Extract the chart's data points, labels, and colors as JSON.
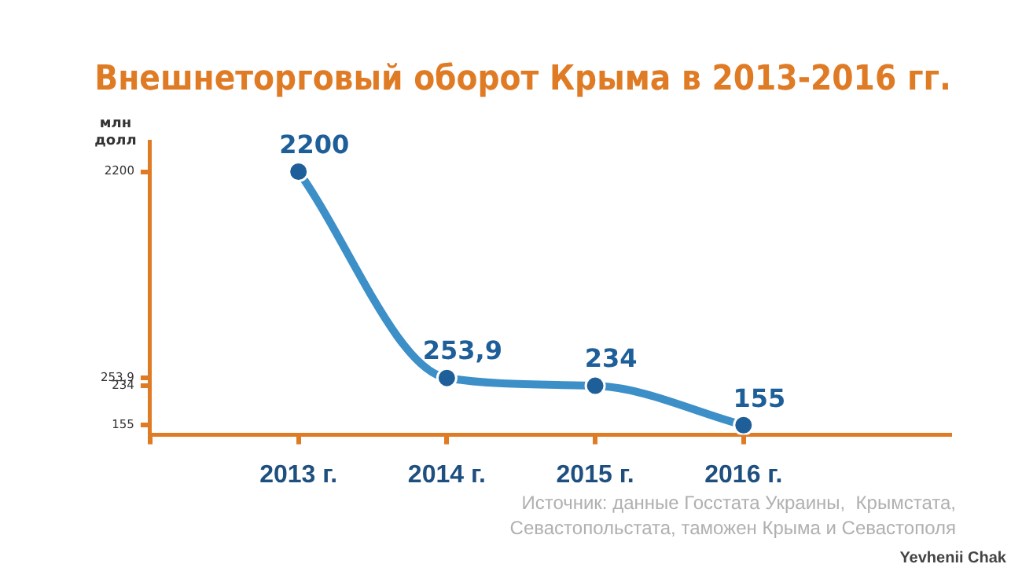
{
  "chart_data": {
    "type": "line",
    "title": "Внешнеторговый оборот Крыма в 2013-2016 гг.",
    "ylabel": "млн долл",
    "x": [
      2013,
      2014,
      2015,
      2016
    ],
    "series": [
      {
        "color": "#3d8fc8",
        "values": [
          2200,
          253.9,
          234,
          155
        ],
        "value_labels": [
          "2200",
          "253,9",
          "234",
          "155"
        ]
      }
    ],
    "xlim": [
      2012,
      2017.4
    ],
    "xticks": [
      {
        "value": 2012,
        "label": null
      },
      {
        "value": 2013,
        "label": "2013 г."
      },
      {
        "value": 2014,
        "label": "2014 г."
      },
      {
        "value": 2015,
        "label": "2015 г."
      },
      {
        "value": 2016,
        "label": "2016 г."
      }
    ],
    "ylim": [
      140,
      3000
    ],
    "yticks": [
      155,
      234,
      {
        "value": 253.9,
        "label": "253,9"
      },
      2200
    ],
    "log": "y",
    "marker": "circle",
    "legend": false,
    "grid": false,
    "annotations": [
      "Источник: данные Госстата Украины,  Крымстата, Севастопольстата, таможен Крыма и Севастополя",
      "Yevhenii Chak"
    ]
  }
}
